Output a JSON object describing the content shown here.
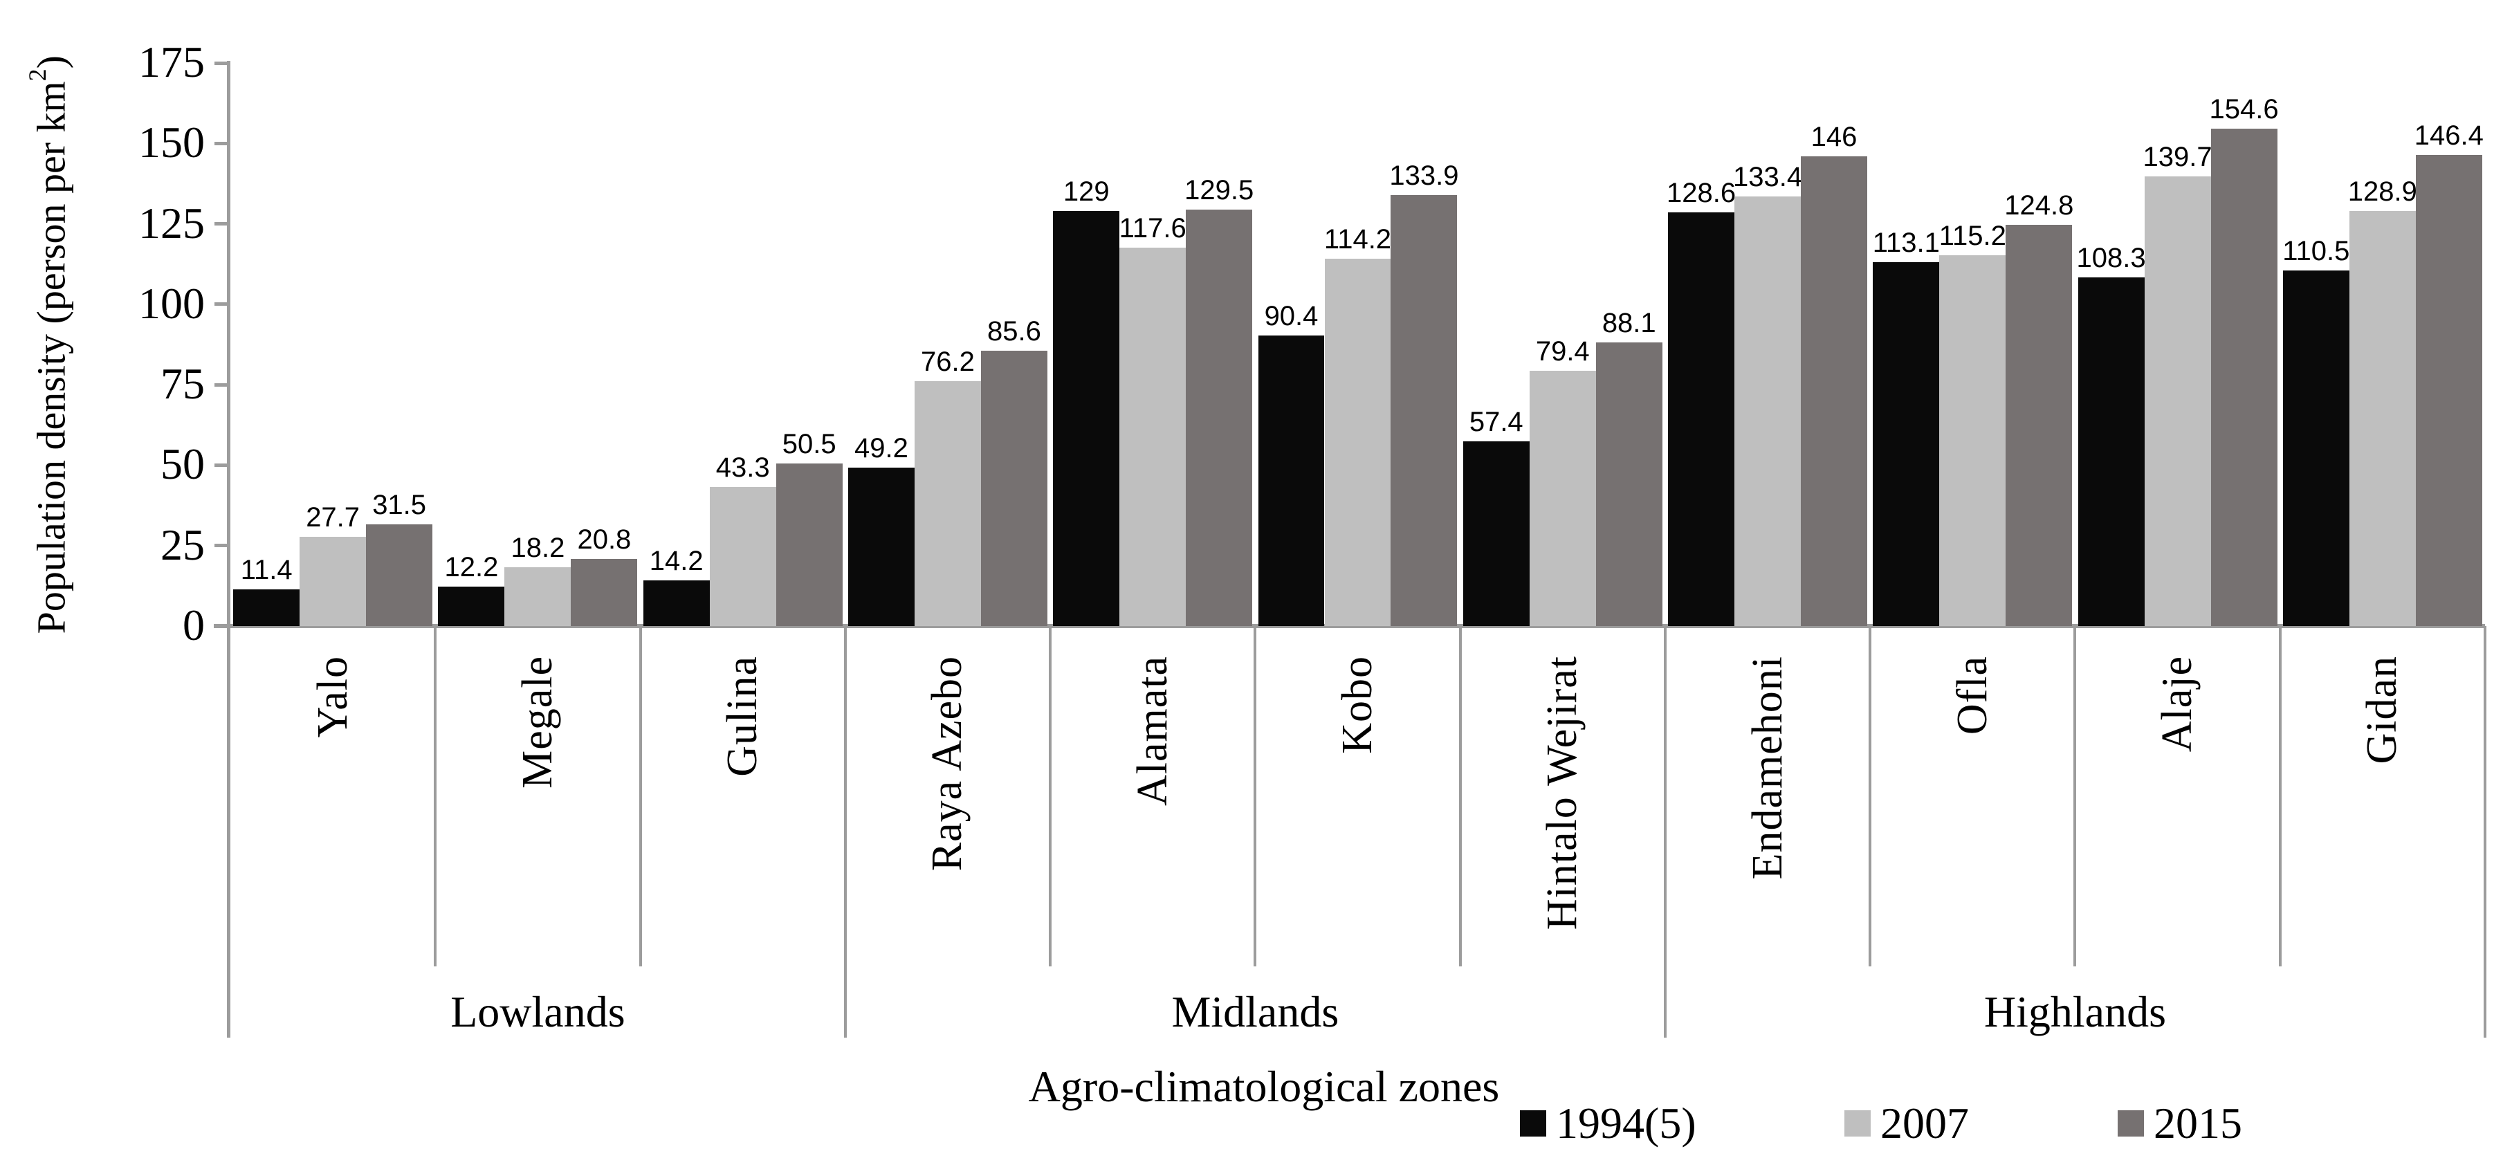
{
  "chart_data": {
    "type": "bar",
    "title": "",
    "xlabel": "Agro-climatological zones",
    "ylabel": {
      "prefix": "Population density (person per km",
      "sup": "2",
      "suffix": ")"
    },
    "ylim": [
      0,
      175
    ],
    "yticks": [
      0,
      25,
      50,
      75,
      100,
      125,
      150,
      175
    ],
    "grid": false,
    "legend_position": "bottom-right",
    "series": [
      {
        "name": "1994(5)",
        "color": "#0a0a0a"
      },
      {
        "name": "2007",
        "color": "#bfbfbf"
      },
      {
        "name": "2015",
        "color": "#767171"
      }
    ],
    "zones": [
      {
        "label": "Lowlands",
        "districts": [
          {
            "name": "Yalo",
            "values": [
              11.4,
              27.7,
              31.5
            ]
          },
          {
            "name": "Megale",
            "values": [
              12.2,
              18.2,
              20.8
            ]
          },
          {
            "name": "Gulina",
            "values": [
              14.2,
              43.3,
              50.5
            ]
          }
        ]
      },
      {
        "label": "Midlands",
        "districts": [
          {
            "name": "Raya Azebo",
            "values": [
              49.2,
              76.2,
              85.6
            ]
          },
          {
            "name": "Alamata",
            "values": [
              129,
              117.6,
              129.5
            ]
          },
          {
            "name": "Kobo",
            "values": [
              90.4,
              114.2,
              133.9
            ]
          },
          {
            "name": "Hintalo Wejirat",
            "values": [
              57.4,
              79.4,
              88.1
            ]
          }
        ]
      },
      {
        "label": "Highlands",
        "districts": [
          {
            "name": "Endamehoni",
            "values": [
              128.6,
              133.4,
              146
            ]
          },
          {
            "name": "Ofla",
            "values": [
              113.1,
              115.2,
              124.8
            ]
          },
          {
            "name": "Alaje",
            "values": [
              108.3,
              139.7,
              154.6
            ]
          },
          {
            "name": "Gidan",
            "values": [
              110.5,
              128.9,
              146.4
            ]
          }
        ]
      }
    ]
  },
  "colors": {
    "bar_1994": "#0a0a0a",
    "bar_2007": "#bfbfbf",
    "bar_2015": "#767171",
    "axis_line": "#9c9c9c",
    "text": "#000000",
    "background": "#ffffff"
  }
}
